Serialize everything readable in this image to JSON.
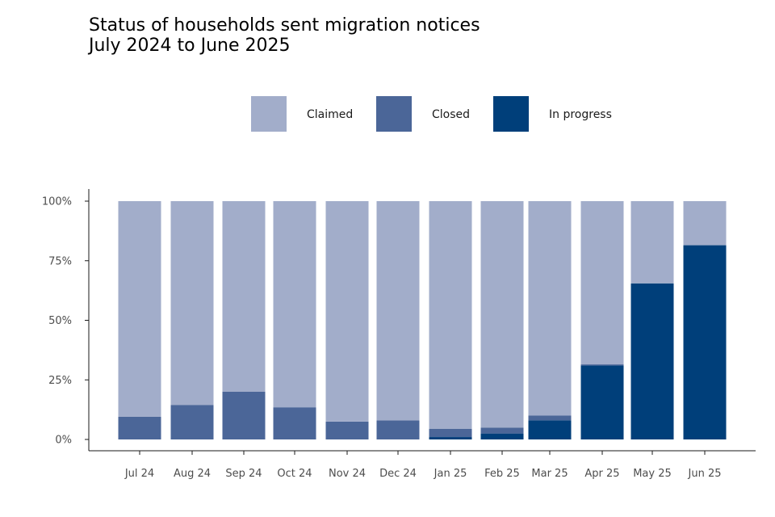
{
  "chart_data": {
    "type": "bar",
    "stacked": true,
    "title": "Status of households sent migration notices",
    "subtitle": "July 2024 to June 2025",
    "xlabel": "",
    "ylabel": "",
    "ylim": [
      0,
      100
    ],
    "yticks": [
      "0%",
      "25%",
      "50%",
      "75%",
      "100%"
    ],
    "legend_position": "top",
    "grid": false,
    "categories": [
      "Jul 24",
      "Aug 24",
      "Sep 24",
      "Oct 24",
      "Nov 24",
      "Dec 24",
      "Jan 25",
      "Feb 25",
      "Mar 25",
      "Apr 25",
      "May 25",
      "Jun 25"
    ],
    "series": [
      {
        "name": "In progress",
        "color": "#003f7a",
        "values": [
          0,
          0,
          0,
          0,
          0,
          0,
          1,
          2.5,
          8,
          31,
          65.5,
          81.5
        ]
      },
      {
        "name": "Closed",
        "color": "#4b6698",
        "values": [
          9.5,
          14.5,
          20,
          13.5,
          7.5,
          8,
          3.5,
          2.5,
          2,
          0.5,
          0,
          0
        ]
      },
      {
        "name": "Claimed",
        "color": "#a2adca",
        "values": [
          90.5,
          85.5,
          80,
          86.5,
          92.5,
          92,
          95.5,
          95,
          90,
          68.5,
          34.5,
          18.5
        ]
      }
    ],
    "legend_order": [
      "Claimed",
      "Closed",
      "In progress"
    ]
  }
}
